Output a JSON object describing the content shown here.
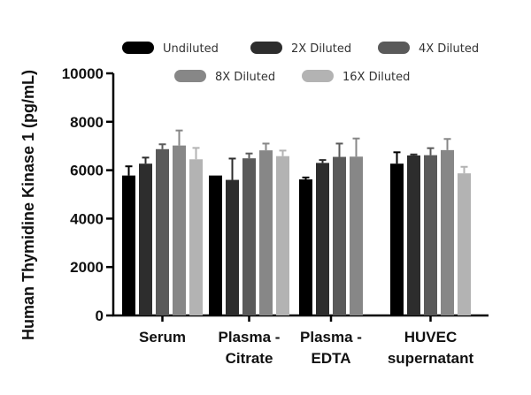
{
  "chart_data": {
    "type": "bar",
    "title": "",
    "xlabel": "",
    "ylabel": "Human Thymidine Kinase 1 (pg/mL)",
    "ylim": [
      0,
      10000
    ],
    "yticks": [
      0,
      2000,
      4000,
      6000,
      8000,
      10000
    ],
    "categories": [
      [
        "Serum"
      ],
      [
        "Plasma -",
        "Citrate"
      ],
      [
        "Plasma -",
        "EDTA"
      ],
      [
        "HUVEC",
        "supernatant"
      ]
    ],
    "series": [
      {
        "name": "Undiluted",
        "color": "#000000",
        "values": [
          5780,
          5780,
          5620,
          6270
        ],
        "errors": [
          380,
          0,
          80,
          470
        ]
      },
      {
        "name": "2X Diluted",
        "color": "#2d2d2d",
        "values": [
          6270,
          5600,
          6300,
          6610
        ],
        "errors": [
          250,
          880,
          120,
          40
        ]
      },
      {
        "name": "4X Diluted",
        "color": "#5a5a5a",
        "values": [
          6870,
          6490,
          6550,
          6620
        ],
        "errors": [
          200,
          200,
          550,
          290
        ]
      },
      {
        "name": "8X Diluted",
        "color": "#878787",
        "values": [
          7020,
          6820,
          6560,
          6830
        ],
        "errors": [
          620,
          280,
          750,
          460
        ]
      },
      {
        "name": "16X Diluted",
        "color": "#b3b3b3",
        "values": [
          6450,
          6580,
          null,
          5870
        ],
        "errors": [
          470,
          230,
          null,
          270
        ]
      }
    ],
    "legend_position": "top",
    "grid": false
  }
}
